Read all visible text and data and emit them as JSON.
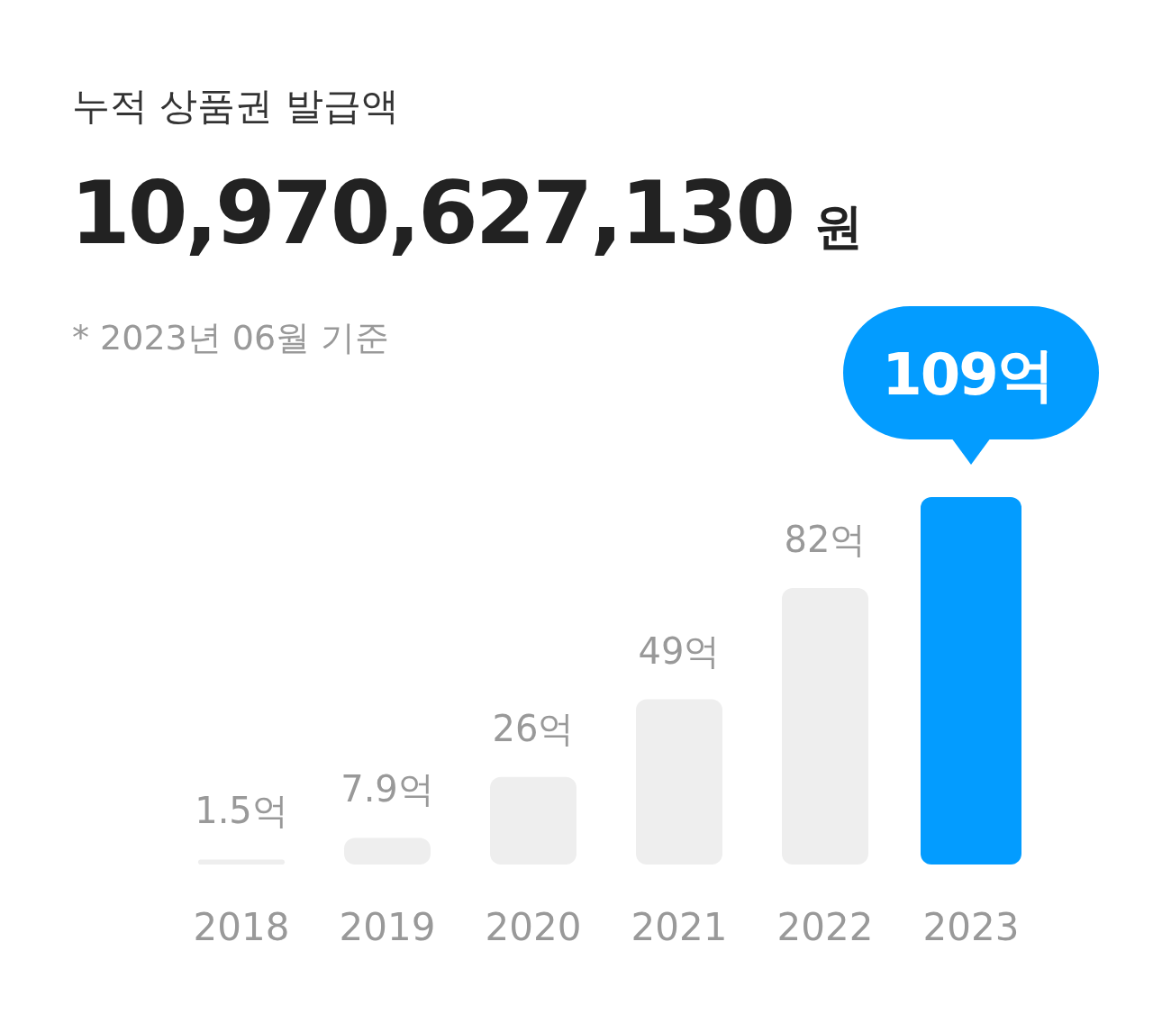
{
  "chart_data": {
    "type": "bar",
    "title": "누적 상품권 발급액",
    "subtitle": "10,970,627,130 원",
    "annotations": [
      "* 2023년 06월 기준"
    ],
    "categories": [
      "2018",
      "2019",
      "2020",
      "2021",
      "2022",
      "2023"
    ],
    "values": [
      1.5,
      7.9,
      26,
      49,
      82,
      109
    ],
    "value_labels": [
      "1.5억",
      "7.9억",
      "26억",
      "49억",
      "82억",
      "109억"
    ],
    "colors": [
      "#eeeeee",
      "#eeeeee",
      "#eeeeee",
      "#eeeeee",
      "#eeeeee",
      "#039cff"
    ]
  }
}
